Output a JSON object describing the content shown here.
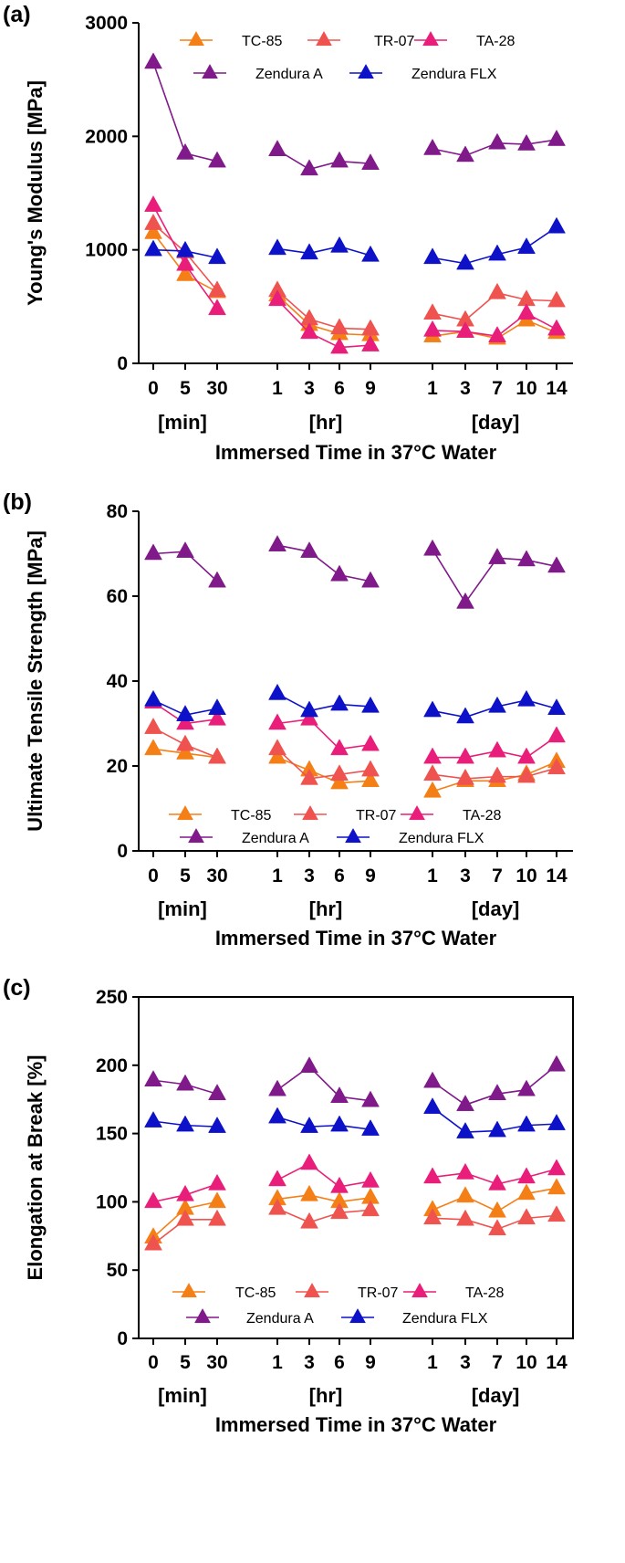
{
  "chart_data": [
    {
      "type": "line",
      "panel": "(a)",
      "ylabel": "Young's Modulus [MPa]",
      "xlabel": "Immersed Time in 37°C Water",
      "ylim": [
        0,
        3000
      ],
      "yticks": [
        "0",
        "1000",
        "2000",
        "3000"
      ],
      "frame": "left-bottom",
      "legend_position": "top",
      "categories": [
        "0",
        "5",
        "30",
        "1",
        "3",
        "6",
        "9",
        "1",
        "3",
        "7",
        "10",
        "14"
      ],
      "groups": [
        "[min]",
        "[hr]",
        "[day]"
      ],
      "series": [
        {
          "name": "TC-85",
          "color": "#f57f17",
          "values": [
            1150,
            780,
            630,
            600,
            340,
            260,
            250,
            240,
            280,
            220,
            380,
            270
          ]
        },
        {
          "name": "TR-07",
          "color": "#ef5350",
          "values": [
            1230,
            980,
            640,
            640,
            390,
            310,
            300,
            440,
            380,
            620,
            560,
            550
          ]
        },
        {
          "name": "TA-28",
          "color": "#e91e7a",
          "values": [
            1390,
            870,
            480,
            560,
            270,
            140,
            160,
            290,
            280,
            240,
            440,
            300
          ]
        },
        {
          "name": "Zendura A",
          "color": "#80198a",
          "values": [
            2650,
            1850,
            1780,
            1880,
            1710,
            1780,
            1760,
            1890,
            1830,
            1940,
            1930,
            1970
          ]
        },
        {
          "name": "Zendura FLX",
          "color": "#0d12c8",
          "values": [
            1000,
            990,
            930,
            1010,
            970,
            1030,
            950,
            930,
            880,
            960,
            1020,
            1200
          ]
        }
      ]
    },
    {
      "type": "line",
      "panel": "(b)",
      "ylabel": "Ultimate Tensile Strength [MPa]",
      "xlabel": "Immersed Time in 37°C Water",
      "ylim": [
        0,
        80
      ],
      "yticks": [
        "0",
        "20",
        "40",
        "60",
        "80"
      ],
      "frame": "left-bottom",
      "legend_position": "bottom",
      "categories": [
        "0",
        "5",
        "30",
        "1",
        "3",
        "6",
        "9",
        "1",
        "3",
        "7",
        "10",
        "14"
      ],
      "groups": [
        "[min]",
        "[hr]",
        "[day]"
      ],
      "series": [
        {
          "name": "TC-85",
          "color": "#f57f17",
          "values": [
            24,
            23,
            22,
            22,
            19,
            16,
            16.5,
            14,
            16.5,
            16.5,
            18,
            21
          ]
        },
        {
          "name": "TR-07",
          "color": "#ef5350",
          "values": [
            29,
            25,
            22,
            24,
            17,
            18,
            19,
            18,
            17,
            17.5,
            17.5,
            19.5
          ]
        },
        {
          "name": "TA-28",
          "color": "#e91e7a",
          "values": [
            35,
            30,
            31,
            30,
            31,
            24,
            25,
            22,
            22,
            23.5,
            22,
            27
          ]
        },
        {
          "name": "Zendura A",
          "color": "#80198a",
          "values": [
            70,
            70.5,
            63.5,
            72,
            70.5,
            65,
            63.5,
            71,
            58.5,
            69,
            68.5,
            67
          ]
        },
        {
          "name": "Zendura FLX",
          "color": "#0d12c8",
          "values": [
            35.5,
            32,
            33.5,
            37,
            33,
            34.5,
            34,
            33,
            31.5,
            34,
            35.5,
            33.5
          ]
        }
      ]
    },
    {
      "type": "line",
      "panel": "(c)",
      "ylabel": "Elongation at Break [%]",
      "xlabel": "Immersed Time in 37°C Water",
      "ylim": [
        0,
        250
      ],
      "yticks": [
        "0",
        "50",
        "100",
        "150",
        "200",
        "250"
      ],
      "frame": "box",
      "legend_position": "bottom",
      "categories": [
        "0",
        "5",
        "30",
        "1",
        "3",
        "6",
        "9",
        "1",
        "3",
        "7",
        "10",
        "14"
      ],
      "groups": [
        "[min]",
        "[hr]",
        "[day]"
      ],
      "series": [
        {
          "name": "TC-85",
          "color": "#f57f17",
          "values": [
            74,
            95,
            100,
            102,
            105,
            100,
            103,
            94,
            104,
            93,
            106,
            110
          ]
        },
        {
          "name": "TR-07",
          "color": "#ef5350",
          "values": [
            69,
            87,
            87,
            95,
            85,
            92,
            94,
            88,
            87,
            80,
            88,
            90
          ]
        },
        {
          "name": "TA-28",
          "color": "#e91e7a",
          "values": [
            100,
            105,
            113,
            116,
            128,
            111,
            115,
            118,
            121,
            113,
            118,
            124
          ]
        },
        {
          "name": "Zendura A",
          "color": "#80198a",
          "values": [
            189,
            186,
            179,
            182,
            199,
            177,
            174,
            188,
            171,
            179,
            182,
            200
          ]
        },
        {
          "name": "Zendura FLX",
          "color": "#0d12c8",
          "values": [
            159,
            156,
            155,
            162,
            155,
            156,
            153,
            169,
            151,
            152,
            156,
            157
          ]
        }
      ]
    }
  ]
}
